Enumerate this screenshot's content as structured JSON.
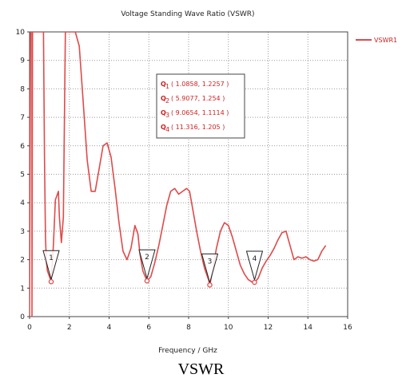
{
  "caption": "VSWR",
  "chart_data": {
    "type": "line",
    "title": "Voltage Standing Wave Ratio (VSWR)",
    "xlabel": "Frequency / GHz",
    "ylabel": "",
    "xlim": [
      0,
      16
    ],
    "ylim": [
      0,
      10
    ],
    "xticks": [
      0,
      2,
      4,
      6,
      8,
      10,
      12,
      14,
      16
    ],
    "yticks": [
      0,
      1,
      2,
      3,
      4,
      5,
      6,
      7,
      8,
      9,
      10
    ],
    "grid": true,
    "legend_position": "top-right",
    "series": [
      {
        "name": "VSWR1",
        "color": "#e04a4a",
        "x": [
          0,
          0.05,
          0.08,
          0.12,
          0.12,
          0.15,
          0.5,
          0.7,
          0.75,
          0.8,
          0.85,
          0.9,
          1.0,
          1.0858,
          1.2,
          1.3,
          1.45,
          1.5,
          1.6,
          1.7,
          1.8,
          1.85,
          1.9,
          2.1,
          2.3,
          2.5,
          2.7,
          2.9,
          3.1,
          3.3,
          3.5,
          3.7,
          3.9,
          4.1,
          4.3,
          4.5,
          4.7,
          4.9,
          5.1,
          5.3,
          5.45,
          5.55,
          5.7,
          5.9077,
          6.1,
          6.3,
          6.5,
          6.7,
          6.9,
          7.1,
          7.3,
          7.5,
          7.7,
          7.9,
          8.05,
          8.2,
          8.4,
          8.6,
          8.8,
          9.0,
          9.0654,
          9.2,
          9.4,
          9.6,
          9.8,
          10.0,
          10.2,
          10.4,
          10.6,
          10.8,
          11.0,
          11.2,
          11.316,
          11.5,
          11.7,
          11.9,
          12.1,
          12.3,
          12.5,
          12.7,
          12.9,
          13.1,
          13.3,
          13.5,
          13.7,
          13.9,
          14.1,
          14.3,
          14.5,
          14.7,
          14.9
        ],
        "y": [
          0,
          10,
          10,
          10,
          0,
          10,
          10,
          10,
          5.5,
          2.8,
          1.9,
          1.6,
          1.4,
          1.2257,
          2.5,
          4.1,
          4.4,
          3.5,
          2.6,
          3.5,
          10,
          10,
          10,
          10,
          10,
          9.5,
          7.5,
          5.5,
          4.4,
          4.4,
          5.2,
          6.0,
          6.1,
          5.6,
          4.5,
          3.3,
          2.3,
          2.0,
          2.4,
          3.2,
          2.9,
          2.2,
          1.6,
          1.254,
          1.4,
          1.9,
          2.5,
          3.2,
          3.9,
          4.4,
          4.5,
          4.3,
          4.4,
          4.5,
          4.4,
          3.8,
          3.0,
          2.3,
          1.7,
          1.3,
          1.1114,
          1.6,
          2.4,
          3.0,
          3.3,
          3.2,
          2.8,
          2.3,
          1.8,
          1.5,
          1.3,
          1.21,
          1.205,
          1.35,
          1.7,
          1.95,
          2.15,
          2.4,
          2.7,
          2.95,
          3.0,
          2.5,
          2.0,
          2.1,
          2.05,
          2.1,
          2.0,
          1.95,
          2.0,
          2.3,
          2.5
        ]
      }
    ],
    "markers": [
      {
        "label": "1",
        "x": 1.0858,
        "y": 1.2257
      },
      {
        "label": "2",
        "x": 5.9077,
        "y": 1.254
      },
      {
        "label": "3",
        "x": 9.0654,
        "y": 1.1114
      },
      {
        "label": "4",
        "x": 11.316,
        "y": 1.205
      }
    ],
    "annotation": {
      "prefix": "Q",
      "lines": [
        "( 1.0858, 1.2257 )",
        "( 5.9077, 1.254 )",
        "( 9.0654, 1.1114 )",
        "( 11.316, 1.205 )"
      ]
    }
  }
}
